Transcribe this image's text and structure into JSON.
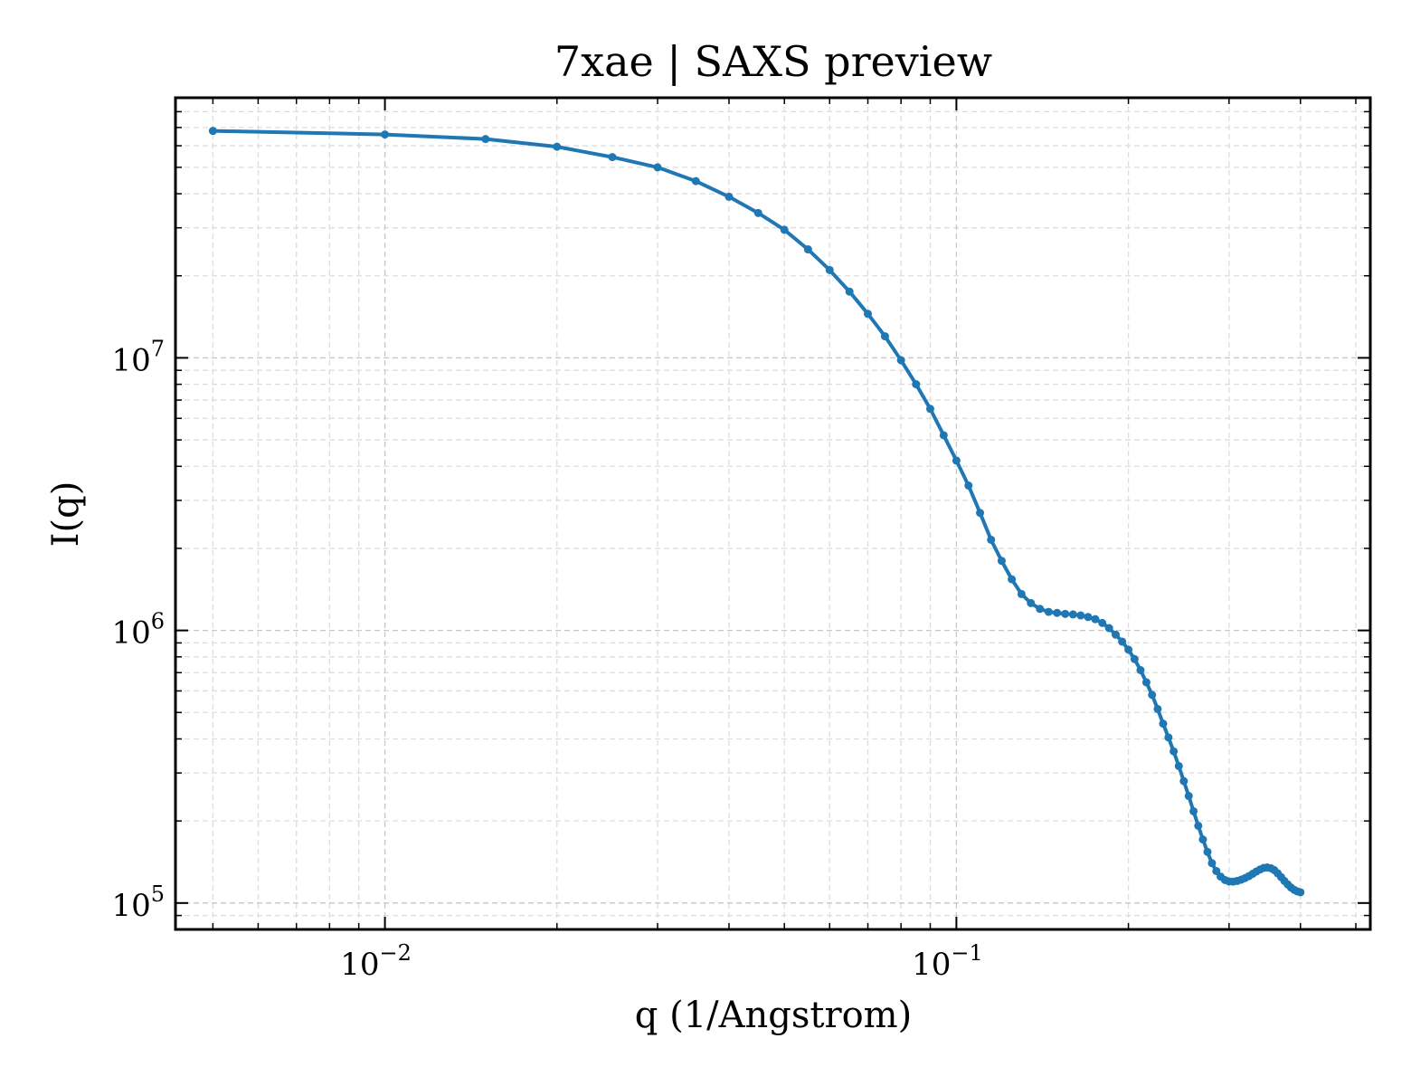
{
  "chart_data": {
    "type": "line",
    "title": "7xae | SAXS preview",
    "xlabel": "q (1/Angstrom)",
    "ylabel": "I(q)",
    "x_scale": "log",
    "y_scale": "log",
    "xlim": [
      0.0043,
      0.53
    ],
    "ylim": [
      80000,
      90000000
    ],
    "grid": true,
    "x_ticks": [
      {
        "value": 0.01,
        "base": "10",
        "exp": "−2"
      },
      {
        "value": 0.1,
        "base": "10",
        "exp": "−1"
      }
    ],
    "y_ticks": [
      {
        "value": 100000,
        "base": "10",
        "exp": "5"
      },
      {
        "value": 1000000,
        "base": "10",
        "exp": "6"
      },
      {
        "value": 10000000,
        "base": "10",
        "exp": "7"
      }
    ],
    "series": [
      {
        "color": "#1f77b4",
        "marker": "circle",
        "points": [
          [
            0.005,
            68000000
          ],
          [
            0.01,
            66000000
          ],
          [
            0.015,
            63500000
          ],
          [
            0.02,
            59500000
          ],
          [
            0.025,
            54500000
          ],
          [
            0.03,
            50000000
          ],
          [
            0.035,
            44500000
          ],
          [
            0.04,
            39000000
          ],
          [
            0.045,
            34000000
          ],
          [
            0.05,
            29500000
          ],
          [
            0.055,
            25000000
          ],
          [
            0.06,
            21000000
          ],
          [
            0.065,
            17500000
          ],
          [
            0.07,
            14500000
          ],
          [
            0.075,
            12000000
          ],
          [
            0.08,
            9800000
          ],
          [
            0.085,
            8000000
          ],
          [
            0.09,
            6500000
          ],
          [
            0.095,
            5200000
          ],
          [
            0.1,
            4200000
          ],
          [
            0.105,
            3400000
          ],
          [
            0.11,
            2700000
          ],
          [
            0.115,
            2150000
          ],
          [
            0.12,
            1800000
          ],
          [
            0.125,
            1540000
          ],
          [
            0.13,
            1360000
          ],
          [
            0.135,
            1260000
          ],
          [
            0.14,
            1200000
          ],
          [
            0.145,
            1170000
          ],
          [
            0.15,
            1160000
          ],
          [
            0.155,
            1150000
          ],
          [
            0.16,
            1145000
          ],
          [
            0.165,
            1135000
          ],
          [
            0.17,
            1120000
          ],
          [
            0.175,
            1100000
          ],
          [
            0.18,
            1065000
          ],
          [
            0.185,
            1020000
          ],
          [
            0.19,
            965000
          ],
          [
            0.195,
            910000
          ],
          [
            0.2,
            850000
          ],
          [
            0.205,
            785000
          ],
          [
            0.21,
            715000
          ],
          [
            0.215,
            645000
          ],
          [
            0.22,
            580000
          ],
          [
            0.225,
            515000
          ],
          [
            0.23,
            455000
          ],
          [
            0.235,
            405000
          ],
          [
            0.24,
            360000
          ],
          [
            0.245,
            318000
          ],
          [
            0.25,
            280000
          ],
          [
            0.255,
            247000
          ],
          [
            0.26,
            217000
          ],
          [
            0.265,
            192000
          ],
          [
            0.27,
            171000
          ],
          [
            0.275,
            154000
          ],
          [
            0.28,
            140000
          ],
          [
            0.285,
            131000
          ],
          [
            0.29,
            125000
          ],
          [
            0.295,
            121500
          ],
          [
            0.3,
            120000
          ],
          [
            0.305,
            119800
          ],
          [
            0.31,
            120500
          ],
          [
            0.315,
            121800
          ],
          [
            0.32,
            123500
          ],
          [
            0.325,
            125500
          ],
          [
            0.33,
            128000
          ],
          [
            0.335,
            130500
          ],
          [
            0.34,
            132800
          ],
          [
            0.345,
            134500
          ],
          [
            0.35,
            135000
          ],
          [
            0.355,
            134200
          ],
          [
            0.36,
            132000
          ],
          [
            0.365,
            128500
          ],
          [
            0.37,
            124500
          ],
          [
            0.375,
            120500
          ],
          [
            0.38,
            117000
          ],
          [
            0.385,
            114000
          ],
          [
            0.39,
            111800
          ],
          [
            0.395,
            110300
          ],
          [
            0.4,
            109500
          ]
        ]
      }
    ]
  }
}
